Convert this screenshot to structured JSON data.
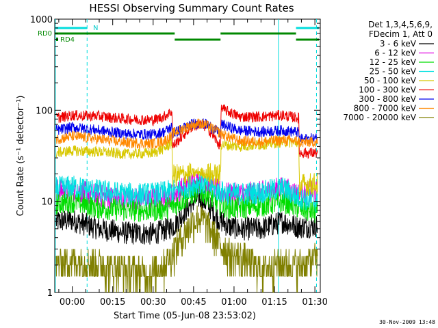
{
  "chart_data": {
    "type": "line",
    "title": "HESSI Observing Summary Count Rates",
    "xlabel": "Start Time (05-Jun-08 23:53:02)",
    "ylabel": "Count Rate (s⁻¹ detector⁻¹)",
    "ylog": true,
    "ylim": [
      1,
      1000
    ],
    "xlim_minutes": [
      -6.5,
      92
    ],
    "x_ticks": [
      "00:00",
      "00:15",
      "00:30",
      "00:45",
      "01:00",
      "01:15",
      "01:30"
    ],
    "x_tick_minutes": [
      0,
      15,
      30,
      45,
      60,
      75,
      90
    ],
    "y_ticks": [
      "1",
      "10",
      "100",
      "1000"
    ],
    "y_tick_values": [
      1,
      10,
      100,
      1000
    ],
    "legend_header": [
      "Det 1,3,4,5,6,9,",
      "FDecim 1, Att 0"
    ],
    "series": [
      {
        "name": "3 - 6 keV",
        "color": "#000000",
        "x": [
          -6,
          0,
          10,
          20,
          30,
          34,
          38,
          44,
          47,
          50,
          54,
          58,
          62,
          70,
          78,
          84,
          90,
          91
        ],
        "values": [
          6,
          6.2,
          5,
          4.5,
          4.4,
          4.8,
          5.5,
          9.5,
          11,
          9.5,
          6.5,
          5.3,
          5,
          5,
          6,
          5.2,
          5.4,
          5.4
        ]
      },
      {
        "name": "6 - 12 keV",
        "color": "#e000e0",
        "x": [
          -6,
          0,
          10,
          20,
          30,
          34,
          38,
          44,
          47,
          50,
          54,
          58,
          62,
          70,
          78,
          84,
          90,
          91
        ],
        "values": [
          13,
          13.2,
          11.5,
          10.5,
          10.5,
          11,
          12,
          16,
          17,
          16,
          13,
          12,
          12,
          12.5,
          14,
          12,
          12.5,
          12.5
        ]
      },
      {
        "name": "12 - 25 keV",
        "color": "#00dd00",
        "x": [
          -6,
          0,
          10,
          20,
          30,
          34,
          38,
          44,
          47,
          50,
          54,
          58,
          62,
          70,
          78,
          84,
          90,
          91
        ],
        "values": [
          9.5,
          10,
          8.5,
          8,
          8,
          8.3,
          9,
          12,
          13,
          12,
          9.5,
          8.5,
          8.5,
          9,
          10,
          8.5,
          7.5,
          7.5
        ]
      },
      {
        "name": "25 - 50 keV",
        "color": "#00e0e0",
        "x": [
          -6,
          0,
          10,
          20,
          30,
          34,
          38,
          44,
          47,
          50,
          54,
          58,
          62,
          70,
          78,
          84,
          90,
          91
        ],
        "values": [
          14,
          14.5,
          13,
          12,
          12,
          12.5,
          13,
          15,
          16,
          15,
          13,
          12,
          12,
          12.5,
          14,
          11,
          10,
          10
        ]
      },
      {
        "name": "50 - 100 keV",
        "color": "#d8c800",
        "x": [
          -6,
          0,
          10,
          20,
          30,
          34,
          37,
          37.2,
          44,
          47,
          50,
          55,
          55.2,
          62,
          70,
          78,
          84,
          84.2,
          90,
          91
        ],
        "values": [
          34,
          36,
          35,
          33,
          34,
          38,
          44,
          19,
          20,
          21,
          20,
          19,
          42,
          40,
          42,
          45,
          44,
          15,
          15.5,
          15.5
        ]
      },
      {
        "name": "100 - 300 keV",
        "color": "#ee0000",
        "x": [
          -6,
          0,
          10,
          20,
          30,
          34,
          37,
          37.2,
          44,
          47,
          50,
          55,
          55.2,
          62,
          70,
          78,
          84,
          84.2,
          90,
          91
        ],
        "values": [
          82,
          88,
          86,
          80,
          78,
          85,
          98,
          40,
          65,
          70,
          65,
          40,
          105,
          85,
          85,
          88,
          82,
          34,
          34,
          34
        ]
      },
      {
        "name": "300 - 800 keV",
        "color": "#0000ee",
        "x": [
          -6,
          0,
          10,
          20,
          30,
          34,
          37,
          37.2,
          44,
          47,
          50,
          55,
          55.2,
          62,
          70,
          78,
          84,
          84.2,
          90,
          91
        ],
        "values": [
          60,
          65,
          60,
          55,
          54,
          58,
          65,
          55,
          70,
          72,
          70,
          55,
          70,
          60,
          58,
          60,
          57,
          48,
          49,
          49
        ]
      },
      {
        "name": "800 - 7000 keV",
        "color": "#ff8800",
        "x": [
          -6,
          0,
          10,
          20,
          30,
          34,
          37,
          37.2,
          44,
          47,
          50,
          55,
          55.2,
          62,
          70,
          78,
          84,
          84.2,
          90,
          91
        ],
        "values": [
          48,
          52,
          48,
          44,
          43,
          46,
          52,
          56,
          68,
          72,
          68,
          56,
          55,
          46,
          45,
          47,
          46,
          44,
          45,
          45
        ]
      },
      {
        "name": "7000 - 20000 keV",
        "color": "#808000",
        "x": [
          -6,
          0,
          10,
          20,
          30,
          34,
          37,
          40,
          44,
          47,
          50,
          54,
          58,
          62,
          70,
          78,
          84,
          90,
          91
        ],
        "values": [
          2,
          2.2,
          2,
          1.7,
          1.6,
          1.9,
          2.6,
          3.6,
          5.5,
          6.5,
          5.5,
          3.5,
          2.6,
          2.4,
          1.8,
          2,
          1.9,
          2.2,
          2.2
        ]
      }
    ],
    "flags": {
      "RD0": {
        "label": "RD0",
        "color": "#008800",
        "segments": [
          [
            -6.5,
            38
          ],
          [
            38,
            55
          ],
          [
            55,
            83
          ],
          [
            83,
            91.5
          ]
        ],
        "levels": [
          "high",
          "low",
          "high",
          "low"
        ]
      },
      "RD4": {
        "label": "RD4",
        "color": "#008800"
      },
      "N": {
        "label": "N",
        "color": "#00dddd",
        "segments": [
          [
            -6.5,
            5.5
          ],
          [
            83,
            91.5
          ]
        ]
      }
    },
    "vertical_markers": [
      {
        "minute": -6.3,
        "style": "solid",
        "color": "#00dddd"
      },
      {
        "minute": 5.5,
        "style": "dashed",
        "color": "#00dddd"
      },
      {
        "minute": 76.5,
        "style": "solid",
        "color": "#00dddd"
      },
      {
        "minute": 90.6,
        "style": "dashed",
        "color": "#00dddd"
      }
    ],
    "footer": "30-Nov-2009 13:48"
  }
}
